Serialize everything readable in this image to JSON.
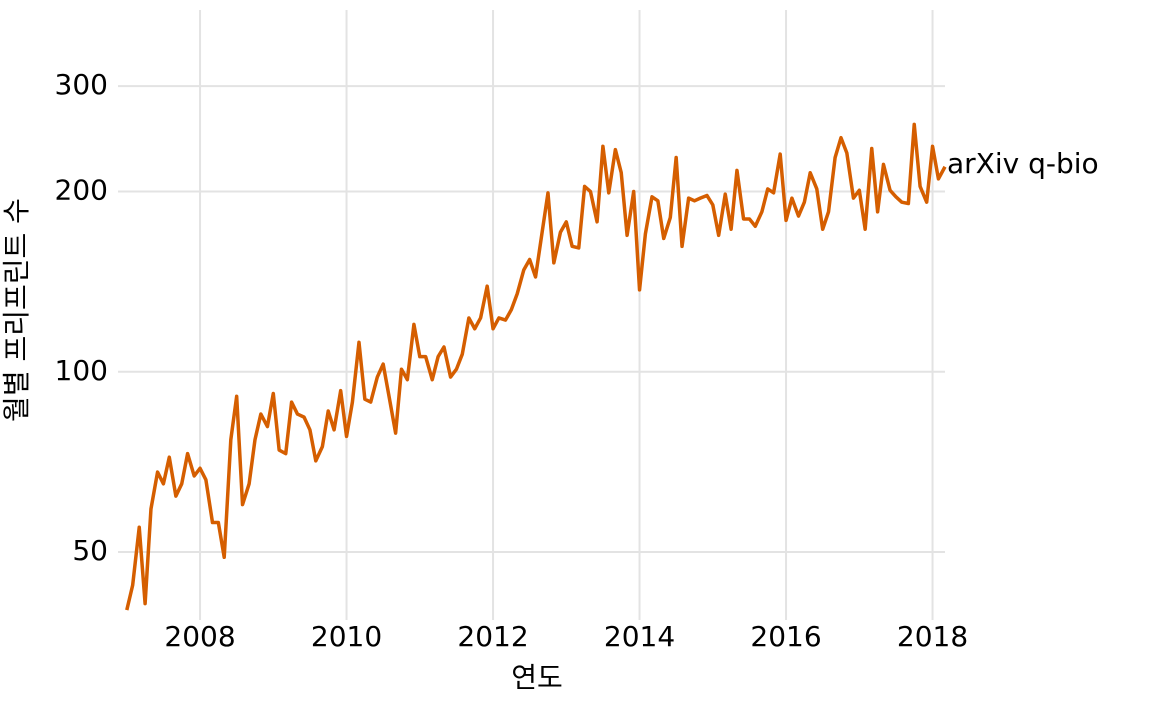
{
  "chart_data": {
    "type": "line",
    "x_label": "연도",
    "y_label": "월별 프리프린트 수",
    "log_y": true,
    "grid": true,
    "xlim": [
      2006.88,
      2018.17
    ],
    "xticks": [
      2008,
      2010,
      2012,
      2014,
      2016,
      2018
    ],
    "ylim": [
      38.5,
      402
    ],
    "yticks": [
      50,
      100,
      200,
      300
    ],
    "series": [
      {
        "name": "arXiv q-bio",
        "color": "#D55E00",
        "x": [
          2007.0,
          2007.08,
          2007.17,
          2007.25,
          2007.33,
          2007.42,
          2007.5,
          2007.58,
          2007.67,
          2007.75,
          2007.83,
          2007.92,
          2008.0,
          2008.08,
          2008.17,
          2008.25,
          2008.33,
          2008.42,
          2008.5,
          2008.58,
          2008.67,
          2008.75,
          2008.83,
          2008.92,
          2009.0,
          2009.08,
          2009.17,
          2009.25,
          2009.33,
          2009.42,
          2009.5,
          2009.58,
          2009.67,
          2009.75,
          2009.83,
          2009.92,
          2010.0,
          2010.08,
          2010.17,
          2010.25,
          2010.33,
          2010.42,
          2010.5,
          2010.58,
          2010.67,
          2010.75,
          2010.83,
          2010.92,
          2011.0,
          2011.08,
          2011.17,
          2011.25,
          2011.33,
          2011.42,
          2011.5,
          2011.58,
          2011.67,
          2011.75,
          2011.83,
          2011.92,
          2012.0,
          2012.08,
          2012.17,
          2012.25,
          2012.33,
          2012.42,
          2012.5,
          2012.58,
          2012.67,
          2012.75,
          2012.83,
          2012.92,
          2013.0,
          2013.08,
          2013.17,
          2013.25,
          2013.33,
          2013.42,
          2013.5,
          2013.58,
          2013.67,
          2013.75,
          2013.83,
          2013.92,
          2014.0,
          2014.08,
          2014.17,
          2014.25,
          2014.33,
          2014.42,
          2014.5,
          2014.58,
          2014.67,
          2014.75,
          2014.83,
          2014.92,
          2015.0,
          2015.08,
          2015.17,
          2015.25,
          2015.33,
          2015.42,
          2015.5,
          2015.58,
          2015.67,
          2015.75,
          2015.83,
          2015.92,
          2016.0,
          2016.08,
          2016.17,
          2016.25,
          2016.33,
          2016.42,
          2016.5,
          2016.58,
          2016.67,
          2016.75,
          2016.83,
          2016.92,
          2017.0,
          2017.08,
          2017.17,
          2017.25,
          2017.33,
          2017.42,
          2017.5,
          2017.58,
          2017.67,
          2017.75,
          2017.83,
          2017.92,
          2018.0,
          2018.08,
          2018.17
        ],
        "values": [
          40,
          44,
          55,
          41,
          59,
          68,
          65,
          72,
          62,
          65,
          73,
          67,
          69,
          66,
          56,
          56,
          49,
          77,
          91,
          60,
          65,
          77,
          85,
          81,
          92,
          74,
          73,
          89,
          85,
          84,
          80,
          71,
          75,
          86,
          80,
          93,
          78,
          89,
          112,
          90,
          89,
          98,
          103,
          91,
          79,
          101,
          97,
          120,
          106,
          106,
          97,
          106,
          110,
          98,
          101,
          107,
          123,
          118,
          123,
          139,
          118,
          123,
          122,
          127,
          135,
          148,
          154,
          144,
          171,
          199,
          152,
          171,
          178,
          162,
          161,
          204,
          200,
          178,
          238,
          199,
          235,
          215,
          169,
          200,
          137,
          170,
          196,
          193,
          167,
          181,
          228,
          162,
          195,
          193,
          195,
          197,
          190,
          169,
          198,
          173,
          217,
          180,
          180,
          175,
          185,
          202,
          199,
          231,
          179,
          195,
          182,
          192,
          215,
          202,
          173,
          185,
          228,
          246,
          232,
          195,
          201,
          173,
          236,
          185,
          222,
          201,
          196,
          192,
          191,
          259,
          204,
          192,
          238,
          210,
          220
        ]
      }
    ]
  }
}
